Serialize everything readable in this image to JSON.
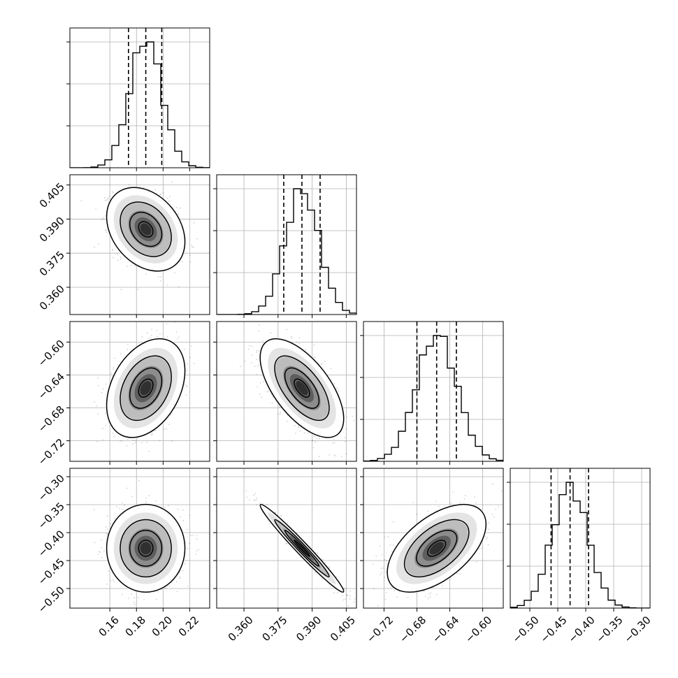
{
  "chart_data": {
    "type": "corner",
    "n_params": 4,
    "grid": true,
    "params": [
      {
        "range": [
          0.13,
          0.235
        ],
        "ticks": [
          0.16,
          0.18,
          0.2,
          0.22
        ],
        "tick_labels": [
          "0.16",
          "0.18",
          "0.20",
          "0.22"
        ],
        "mean": 0.187,
        "sd": 0.012,
        "quantiles": [
          0.174,
          0.187,
          0.199
        ],
        "hist_peak": 1.0
      },
      {
        "range": [
          0.348,
          0.4095
        ],
        "ticks": [
          0.36,
          0.375,
          0.39,
          0.405
        ],
        "tick_labels": [
          "0.360",
          "0.375",
          "0.390",
          "0.405"
        ],
        "mean": 0.3855,
        "sd": 0.0075,
        "quantiles": [
          0.3775,
          0.3855,
          0.3935
        ],
        "hist_peak": 1.0
      },
      {
        "range": [
          -0.745,
          -0.575
        ],
        "ticks": [
          -0.72,
          -0.68,
          -0.64,
          -0.6
        ],
        "tick_labels": [
          "−0.72",
          "−0.68",
          "−0.64",
          "−0.60"
        ],
        "mean": -0.656,
        "sd": 0.0245,
        "quantiles": [
          -0.68,
          -0.656,
          -0.632
        ],
        "hist_peak": 1.0
      },
      {
        "range": [
          -0.535,
          -0.285
        ],
        "ticks": [
          -0.5,
          -0.45,
          -0.4,
          -0.35,
          -0.3
        ],
        "tick_labels": [
          "−0.50",
          "−0.45",
          "−0.40",
          "−0.35",
          "−0.30"
        ],
        "mean": -0.428,
        "sd": 0.032,
        "quantiles": [
          -0.462,
          -0.428,
          -0.395
        ],
        "hist_peak": 1.0
      }
    ],
    "correlations": {
      "1-0": -0.3,
      "2-0": 0.35,
      "2-1": -0.62,
      "3-0": 0.0,
      "3-1": -0.98,
      "3-2": 0.55
    },
    "y_axis_shown_for": [
      1,
      2,
      3
    ],
    "x_axis_shown_for": [
      0,
      1,
      2,
      3
    ]
  }
}
